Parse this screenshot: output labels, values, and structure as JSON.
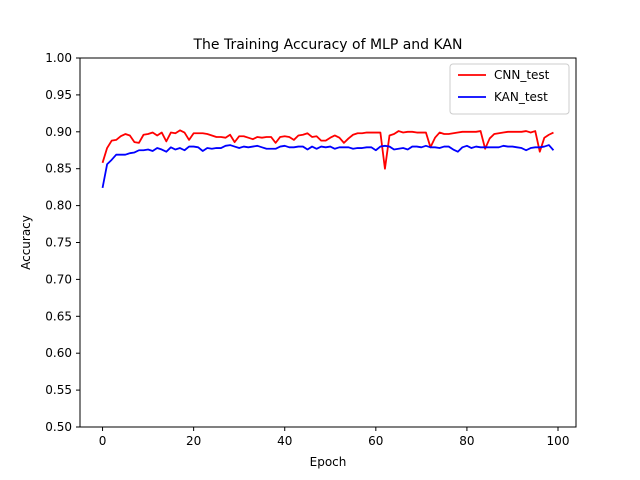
{
  "chart_data": {
    "type": "line",
    "title": "The Training Accuracy of MLP and KAN",
    "xlabel": "Epoch",
    "ylabel": "Accuracy",
    "xlim": [
      -4.95,
      103.95
    ],
    "ylim": [
      0.5,
      1.0
    ],
    "xticks": [
      0,
      20,
      40,
      60,
      80,
      100
    ],
    "yticks": [
      "0.50",
      "0.55",
      "0.60",
      "0.65",
      "0.70",
      "0.75",
      "0.80",
      "0.85",
      "0.90",
      "0.95",
      "1.00"
    ],
    "grid": false,
    "legend_position": "top-right",
    "x": [
      0,
      1,
      2,
      3,
      4,
      5,
      6,
      7,
      8,
      9,
      10,
      11,
      12,
      13,
      14,
      15,
      16,
      17,
      18,
      19,
      20,
      21,
      22,
      23,
      24,
      25,
      26,
      27,
      28,
      29,
      30,
      31,
      32,
      33,
      34,
      35,
      36,
      37,
      38,
      39,
      40,
      41,
      42,
      43,
      44,
      45,
      46,
      47,
      48,
      49,
      50,
      51,
      52,
      53,
      54,
      55,
      56,
      57,
      58,
      59,
      60,
      61,
      62,
      63,
      64,
      65,
      66,
      67,
      68,
      69,
      70,
      71,
      72,
      73,
      74,
      75,
      76,
      77,
      78,
      79,
      80,
      81,
      82,
      83,
      84,
      85,
      86,
      87,
      88,
      89,
      90,
      91,
      92,
      93,
      94,
      95,
      96,
      97,
      98,
      99
    ],
    "series": [
      {
        "name": "CNN_test",
        "color": "#ff0000",
        "values": [
          0.858,
          0.878,
          0.888,
          0.889,
          0.894,
          0.897,
          0.895,
          0.886,
          0.885,
          0.896,
          0.897,
          0.899,
          0.895,
          0.899,
          0.887,
          0.899,
          0.898,
          0.902,
          0.899,
          0.889,
          0.898,
          0.898,
          0.898,
          0.897,
          0.895,
          0.893,
          0.893,
          0.892,
          0.896,
          0.886,
          0.894,
          0.894,
          0.892,
          0.89,
          0.893,
          0.892,
          0.893,
          0.893,
          0.885,
          0.893,
          0.894,
          0.893,
          0.889,
          0.895,
          0.896,
          0.898,
          0.893,
          0.894,
          0.888,
          0.888,
          0.892,
          0.895,
          0.892,
          0.885,
          0.891,
          0.896,
          0.898,
          0.898,
          0.899,
          0.899,
          0.899,
          0.899,
          0.85,
          0.895,
          0.897,
          0.901,
          0.899,
          0.9,
          0.9,
          0.899,
          0.899,
          0.899,
          0.879,
          0.892,
          0.899,
          0.897,
          0.897,
          0.898,
          0.899,
          0.9,
          0.9,
          0.9,
          0.9,
          0.901,
          0.877,
          0.891,
          0.897,
          0.898,
          0.899,
          0.9,
          0.9,
          0.9,
          0.9,
          0.901,
          0.899,
          0.901,
          0.873,
          0.892,
          0.896,
          0.899
        ]
      },
      {
        "name": "KAN_test",
        "color": "#0000ff",
        "values": [
          0.824,
          0.856,
          0.862,
          0.869,
          0.869,
          0.869,
          0.871,
          0.872,
          0.875,
          0.875,
          0.876,
          0.874,
          0.878,
          0.876,
          0.873,
          0.879,
          0.876,
          0.878,
          0.875,
          0.88,
          0.88,
          0.879,
          0.874,
          0.878,
          0.877,
          0.878,
          0.878,
          0.881,
          0.882,
          0.88,
          0.878,
          0.88,
          0.879,
          0.88,
          0.881,
          0.879,
          0.877,
          0.877,
          0.877,
          0.88,
          0.881,
          0.879,
          0.879,
          0.88,
          0.88,
          0.876,
          0.88,
          0.877,
          0.88,
          0.879,
          0.88,
          0.877,
          0.879,
          0.879,
          0.879,
          0.877,
          0.878,
          0.878,
          0.879,
          0.879,
          0.875,
          0.88,
          0.881,
          0.88,
          0.876,
          0.877,
          0.878,
          0.876,
          0.88,
          0.88,
          0.879,
          0.881,
          0.879,
          0.879,
          0.878,
          0.88,
          0.88,
          0.876,
          0.873,
          0.879,
          0.881,
          0.878,
          0.88,
          0.879,
          0.879,
          0.879,
          0.879,
          0.879,
          0.881,
          0.88,
          0.88,
          0.879,
          0.878,
          0.875,
          0.878,
          0.879,
          0.879,
          0.88,
          0.882,
          0.875
        ]
      }
    ]
  }
}
